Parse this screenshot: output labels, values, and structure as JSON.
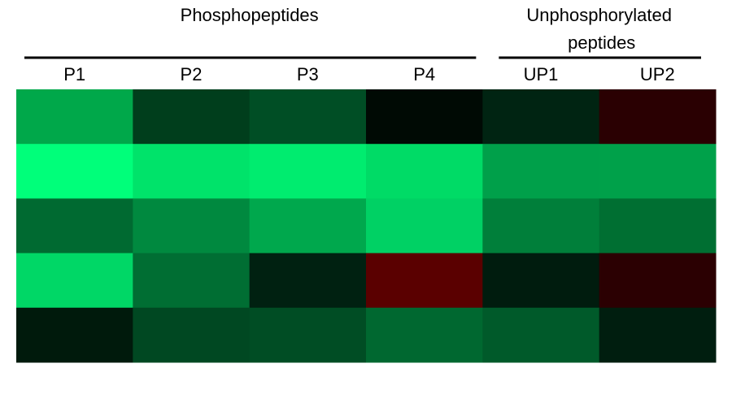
{
  "chart_data": {
    "type": "heatmap",
    "groups": [
      {
        "label": "Phosphopeptides",
        "columns": [
          0,
          3
        ]
      },
      {
        "label": "Unphosphorylated peptides",
        "columns": [
          4,
          5
        ]
      }
    ],
    "columns": [
      "P1",
      "P2",
      "P3",
      "P4",
      "UP1",
      "UP2"
    ],
    "colors": [
      [
        "#00a84a",
        "#003e1c",
        "#004e25",
        "#000a04",
        "#002412",
        "#2a0002"
      ],
      [
        "#00ff7a",
        "#00e36a",
        "#00ec6f",
        "#00db66",
        "#00a04a",
        "#00a14a"
      ],
      [
        "#006a31",
        "#00893f",
        "#00a84d",
        "#00d164",
        "#007f3a",
        "#006f32"
      ],
      [
        "#00d766",
        "#006e33",
        "#002111",
        "#5a0000",
        "#001c0e",
        "#2b0002"
      ],
      [
        "#001a0c",
        "#004822",
        "#004d24",
        "#006830",
        "#005a2a",
        "#001e0f"
      ]
    ]
  }
}
